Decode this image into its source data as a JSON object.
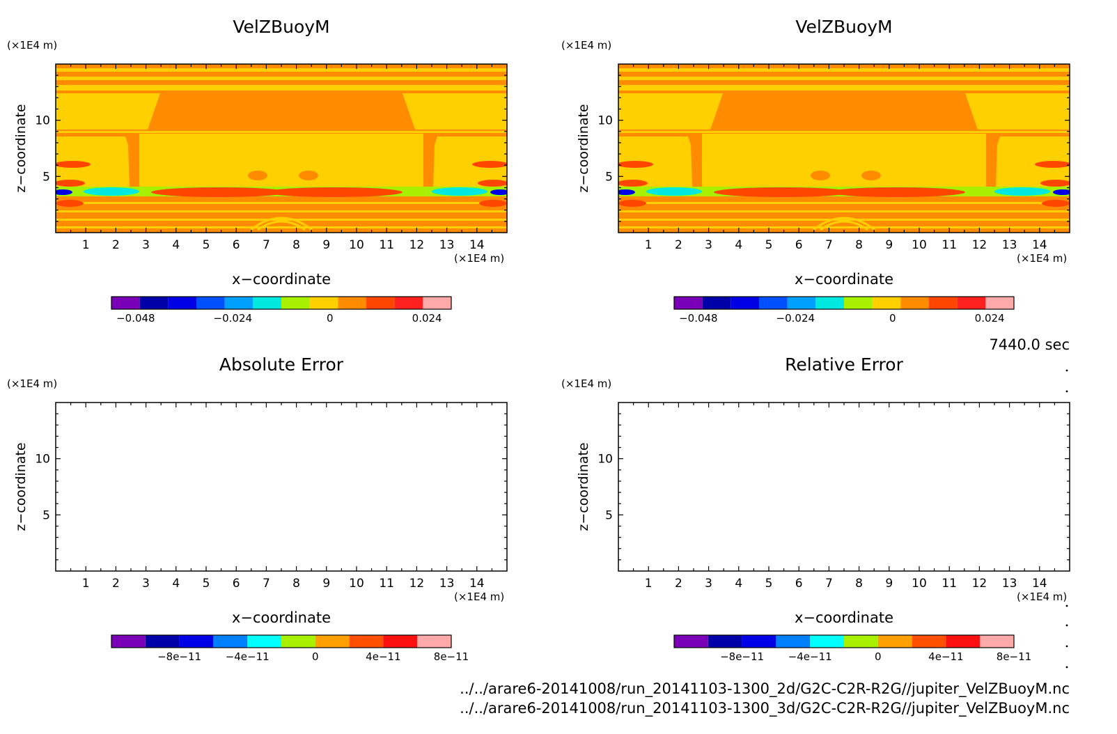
{
  "panel_titles": [
    "VelZBuoyM",
    "VelZBuoyM",
    "Absolute Error",
    "Relative Error"
  ],
  "axis_unit_label": "(×1E4 m)",
  "xlabel": "x−coordinate",
  "ylabel": "z−coordinate",
  "time_label": "7440.0 sec",
  "file_lines": [
    "../../arare6-20141008/run_20141103-1300_2d/G2C-C2R-R2G//jupiter_VelZBuoyM.nc",
    "../../arare6-20141008/run_20141103-1300_3d/G2C-C2R-R2G//jupiter_VelZBuoyM.nc"
  ],
  "chart_data": [
    {
      "type": "heatmap",
      "title": "VelZBuoyM",
      "xlabel": "x−coordinate",
      "ylabel": "z−coordinate",
      "x_unit": "(×1E4 m)",
      "y_unit": "(×1E4 m)",
      "xlim": [
        0,
        15
      ],
      "ylim": [
        0,
        15
      ],
      "xticks": [
        1,
        2,
        3,
        4,
        5,
        6,
        7,
        8,
        9,
        10,
        11,
        12,
        13,
        14
      ],
      "yticks": [
        5,
        10
      ],
      "colorbar": {
        "levels": [
          -0.054,
          -0.048,
          -0.042,
          -0.036,
          -0.03,
          -0.024,
          -0.018,
          -0.012,
          -0.006,
          0,
          0.006,
          0.012,
          0.018,
          0.024,
          0.03
        ],
        "colors": [
          "#7a00b8",
          "#0000a8",
          "#0000e6",
          "#0050ff",
          "#00a0ff",
          "#00e8e0",
          "#a6f000",
          "#ffd000",
          "#ff8c00",
          "#ff4600",
          "#ff2020",
          "#ffaaaa"
        ],
        "tick_labels": [
          "−0.048",
          "−0.024",
          "0",
          "0.024"
        ],
        "tick_values": [
          -0.048,
          -0.024,
          0,
          0.024
        ]
      }
    },
    {
      "type": "heatmap",
      "title": "VelZBuoyM",
      "xlabel": "x−coordinate",
      "ylabel": "z−coordinate",
      "x_unit": "(×1E4 m)",
      "y_unit": "(×1E4 m)",
      "xlim": [
        0,
        15
      ],
      "ylim": [
        0,
        15
      ],
      "xticks": [
        1,
        2,
        3,
        4,
        5,
        6,
        7,
        8,
        9,
        10,
        11,
        12,
        13,
        14
      ],
      "yticks": [
        5,
        10
      ],
      "colorbar": {
        "levels": [
          -0.054,
          -0.048,
          -0.042,
          -0.036,
          -0.03,
          -0.024,
          -0.018,
          -0.012,
          -0.006,
          0,
          0.006,
          0.012,
          0.018,
          0.024,
          0.03
        ],
        "colors": [
          "#7a00b8",
          "#0000a8",
          "#0000e6",
          "#0050ff",
          "#00a0ff",
          "#00e8e0",
          "#a6f000",
          "#ffd000",
          "#ff8c00",
          "#ff4600",
          "#ff2020",
          "#ffaaaa"
        ],
        "tick_labels": [
          "−0.048",
          "−0.024",
          "0",
          "0.024"
        ],
        "tick_values": [
          -0.048,
          -0.024,
          0,
          0.024
        ]
      }
    },
    {
      "type": "heatmap",
      "title": "Absolute Error",
      "xlabel": "x−coordinate",
      "ylabel": "z−coordinate",
      "x_unit": "(×1E4 m)",
      "y_unit": "(×1E4 m)",
      "xlim": [
        0,
        15
      ],
      "ylim": [
        0,
        15
      ],
      "xticks": [
        1,
        2,
        3,
        4,
        5,
        6,
        7,
        8,
        9,
        10,
        11,
        12,
        13,
        14
      ],
      "yticks": [
        5,
        10
      ],
      "field": "empty",
      "colorbar": {
        "levels": [
          -1.2e-10,
          -1e-10,
          -8e-11,
          -6e-11,
          -4e-11,
          -2e-11,
          0,
          2e-11,
          4e-11,
          6e-11,
          8e-11
        ],
        "colors": [
          "#7a00b8",
          "#0000a8",
          "#0000e6",
          "#0080ff",
          "#00ffff",
          "#a6f000",
          "#ffa000",
          "#ff5000",
          "#ff1010",
          "#ffaaaa"
        ],
        "tick_labels": [
          "−8e−11",
          "−4e−11",
          "0",
          "4e−11",
          "8e−11"
        ],
        "tick_values": [
          -8e-11,
          -4e-11,
          0,
          4e-11,
          8e-11
        ]
      }
    },
    {
      "type": "heatmap",
      "title": "Relative Error",
      "xlabel": "x−coordinate",
      "ylabel": "z−coordinate",
      "x_unit": "(×1E4 m)",
      "y_unit": "(×1E4 m)",
      "xlim": [
        0,
        15
      ],
      "ylim": [
        0,
        15
      ],
      "xticks": [
        1,
        2,
        3,
        4,
        5,
        6,
        7,
        8,
        9,
        10,
        11,
        12,
        13,
        14
      ],
      "yticks": [
        5,
        10
      ],
      "field": "empty",
      "colorbar": {
        "levels": [
          -1.2e-10,
          -1e-10,
          -8e-11,
          -6e-11,
          -4e-11,
          -2e-11,
          0,
          2e-11,
          4e-11,
          6e-11,
          8e-11
        ],
        "colors": [
          "#7a00b8",
          "#0000a8",
          "#0000e6",
          "#0080ff",
          "#00ffff",
          "#a6f000",
          "#ffa000",
          "#ff5000",
          "#ff1010",
          "#ffaaaa"
        ],
        "tick_labels": [
          "−8e−11",
          "−4e−11",
          "0",
          "4e−11",
          "8e−11"
        ],
        "tick_values": [
          -8e-11,
          -4e-11,
          0,
          4e-11,
          8e-11
        ]
      }
    }
  ]
}
